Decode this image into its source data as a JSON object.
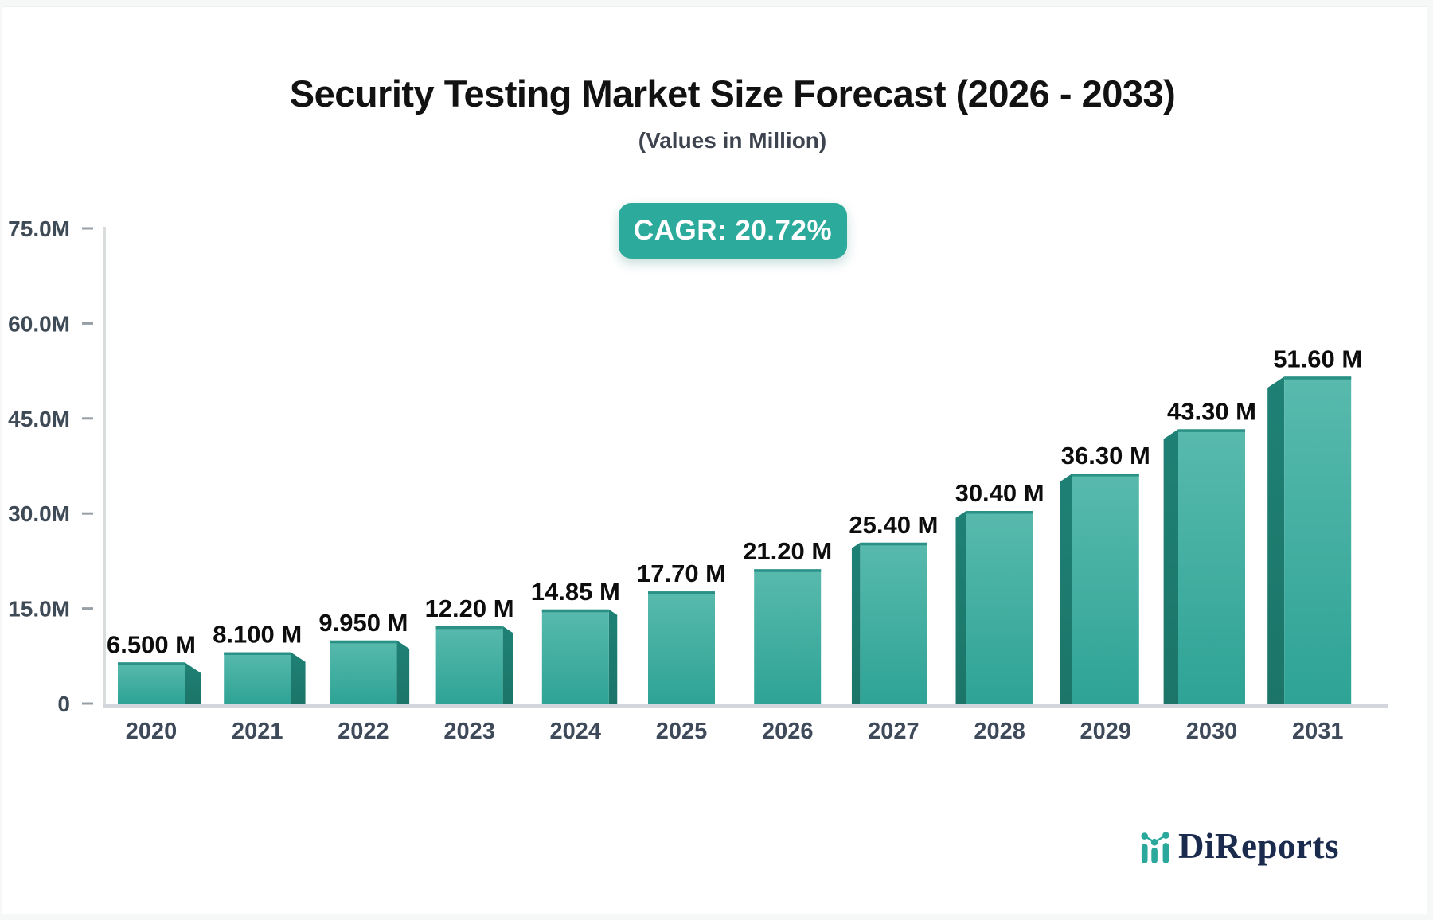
{
  "page": {
    "background": "#f6f8f8",
    "card_background": "#ffffff",
    "card_border": "#eef1f1"
  },
  "header": {
    "title": "Security Testing Market Size Forecast (2026 - 2033)",
    "subtitle": "(Values in Million)"
  },
  "badge": {
    "label": "CAGR: 20.72%",
    "background": "#2caa9c",
    "text_color": "#ffffff"
  },
  "chart_data": {
    "type": "bar",
    "title": "Security Testing Market Size Forecast (2026 - 2033)",
    "subtitle": "(Values in Million)",
    "unit": "Million",
    "cagr": "20.72%",
    "categories": [
      "2020",
      "2021",
      "2022",
      "2023",
      "2024",
      "2025",
      "2026",
      "2027",
      "2028",
      "2029",
      "2030",
      "2031"
    ],
    "values": [
      6.5,
      8.1,
      9.95,
      12.2,
      14.85,
      17.7,
      21.2,
      25.4,
      30.4,
      36.3,
      43.3,
      51.6
    ],
    "value_labels": [
      "6.500 M",
      "8.100 M",
      "9.950 M",
      "12.20 M",
      "14.85 M",
      "17.70 M",
      "21.20 M",
      "25.40 M",
      "30.40 M",
      "36.30 M",
      "43.30 M",
      "51.60 M"
    ],
    "ylim": [
      0,
      75
    ],
    "yticks": [
      0,
      15,
      30,
      45,
      60,
      75
    ],
    "ytick_labels": [
      "0",
      "15.0M",
      "30.0M",
      "45.0M",
      "60.0M",
      "75.0M"
    ],
    "grid": false,
    "legend": false,
    "colors": {
      "bar_front_top": "#58baad",
      "bar_front_bottom": "#2ea396",
      "bar_cap": "#2b9186",
      "bar_side_top": "#1e8175",
      "bar_side_bottom": "#1c7568",
      "axis_line_v": "#dadddd",
      "axis_line_h": "#d3d6dd",
      "tick": "#98a0a7",
      "tick_label": "#3f4a57",
      "year_label": "#3e4a5a",
      "value_label": "#0d0d0d"
    }
  },
  "logo": {
    "icon": "bar-chart-trend-icon",
    "text": "DiReports",
    "text_color": "#1b2b4d",
    "icon_color": "#2aa89c"
  }
}
